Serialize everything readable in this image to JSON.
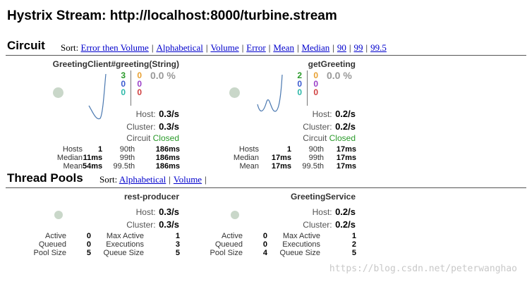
{
  "page": {
    "title": "Hystrix Stream: http://localhost:8000/turbine.stream"
  },
  "circuit_section": {
    "heading": "Circuit",
    "sort_label": "Sort:",
    "sort_options": [
      "Error then Volume",
      "Alphabetical",
      "Volume",
      "Error",
      "Mean",
      "Median",
      "90",
      "99",
      "99.5"
    ]
  },
  "circuits": [
    {
      "name": "GreetingClient#greeting(String)",
      "counts_left": [
        "3",
        "0",
        "0"
      ],
      "counts_right": [
        "0",
        "0",
        "0"
      ],
      "error_pct": "0.0 %",
      "host_label": "Host:",
      "host_rate": "0.3/s",
      "cluster_label": "Cluster:",
      "cluster_rate": "0.3/s",
      "circuit_label": "Circuit",
      "circuit_status": "Closed",
      "stats_left_labels": [
        "Hosts",
        "Median",
        "Mean"
      ],
      "stats_left_values": [
        "1",
        "11ms",
        "54ms"
      ],
      "stats_right_labels": [
        "90th",
        "99th",
        "99.5th"
      ],
      "stats_right_values": [
        "186ms",
        "186ms",
        "186ms"
      ]
    },
    {
      "name": "getGreeting",
      "counts_left": [
        "2",
        "0",
        "0"
      ],
      "counts_right": [
        "0",
        "0",
        "0"
      ],
      "error_pct": "0.0 %",
      "host_label": "Host:",
      "host_rate": "0.2/s",
      "cluster_label": "Cluster:",
      "cluster_rate": "0.2/s",
      "circuit_label": "Circuit",
      "circuit_status": "Closed",
      "stats_left_labels": [
        "Hosts",
        "Median",
        "Mean"
      ],
      "stats_left_values": [
        "1",
        "17ms",
        "17ms"
      ],
      "stats_right_labels": [
        "90th",
        "99th",
        "99.5th"
      ],
      "stats_right_values": [
        "17ms",
        "17ms",
        "17ms"
      ]
    }
  ],
  "thread_section": {
    "heading": "Thread Pools",
    "sort_label": "Sort:",
    "sort_options": [
      "Alphabetical",
      "Volume"
    ]
  },
  "pools": [
    {
      "name": "rest-producer",
      "host_label": "Host:",
      "host_rate": "0.3/s",
      "cluster_label": "Cluster:",
      "cluster_rate": "0.3/s",
      "left_labels": [
        "Active",
        "Queued",
        "Pool Size"
      ],
      "left_values": [
        "0",
        "0",
        "5"
      ],
      "right_labels": [
        "Max Active",
        "Executions",
        "Queue Size"
      ],
      "right_values": [
        "1",
        "3",
        "5"
      ]
    },
    {
      "name": "GreetingService",
      "host_label": "Host:",
      "host_rate": "0.2/s",
      "cluster_label": "Cluster:",
      "cluster_rate": "0.2/s",
      "left_labels": [
        "Active",
        "Queued",
        "Pool Size"
      ],
      "left_values": [
        "0",
        "0",
        "4"
      ],
      "right_labels": [
        "Max Active",
        "Executions",
        "Queue Size"
      ],
      "right_values": [
        "1",
        "2",
        "5"
      ]
    }
  ],
  "colors": {
    "success": "#2a9a2a",
    "short_circuited": "#3b5ad0",
    "bad_request": "#2cb8a8",
    "timeout": "#e8a030",
    "rejected": "#9b40c8",
    "failure": "#d04040",
    "sparkline": "#4a78b0",
    "link": "#0000cc"
  },
  "watermark": "https://blog.csdn.net/peterwanghao"
}
